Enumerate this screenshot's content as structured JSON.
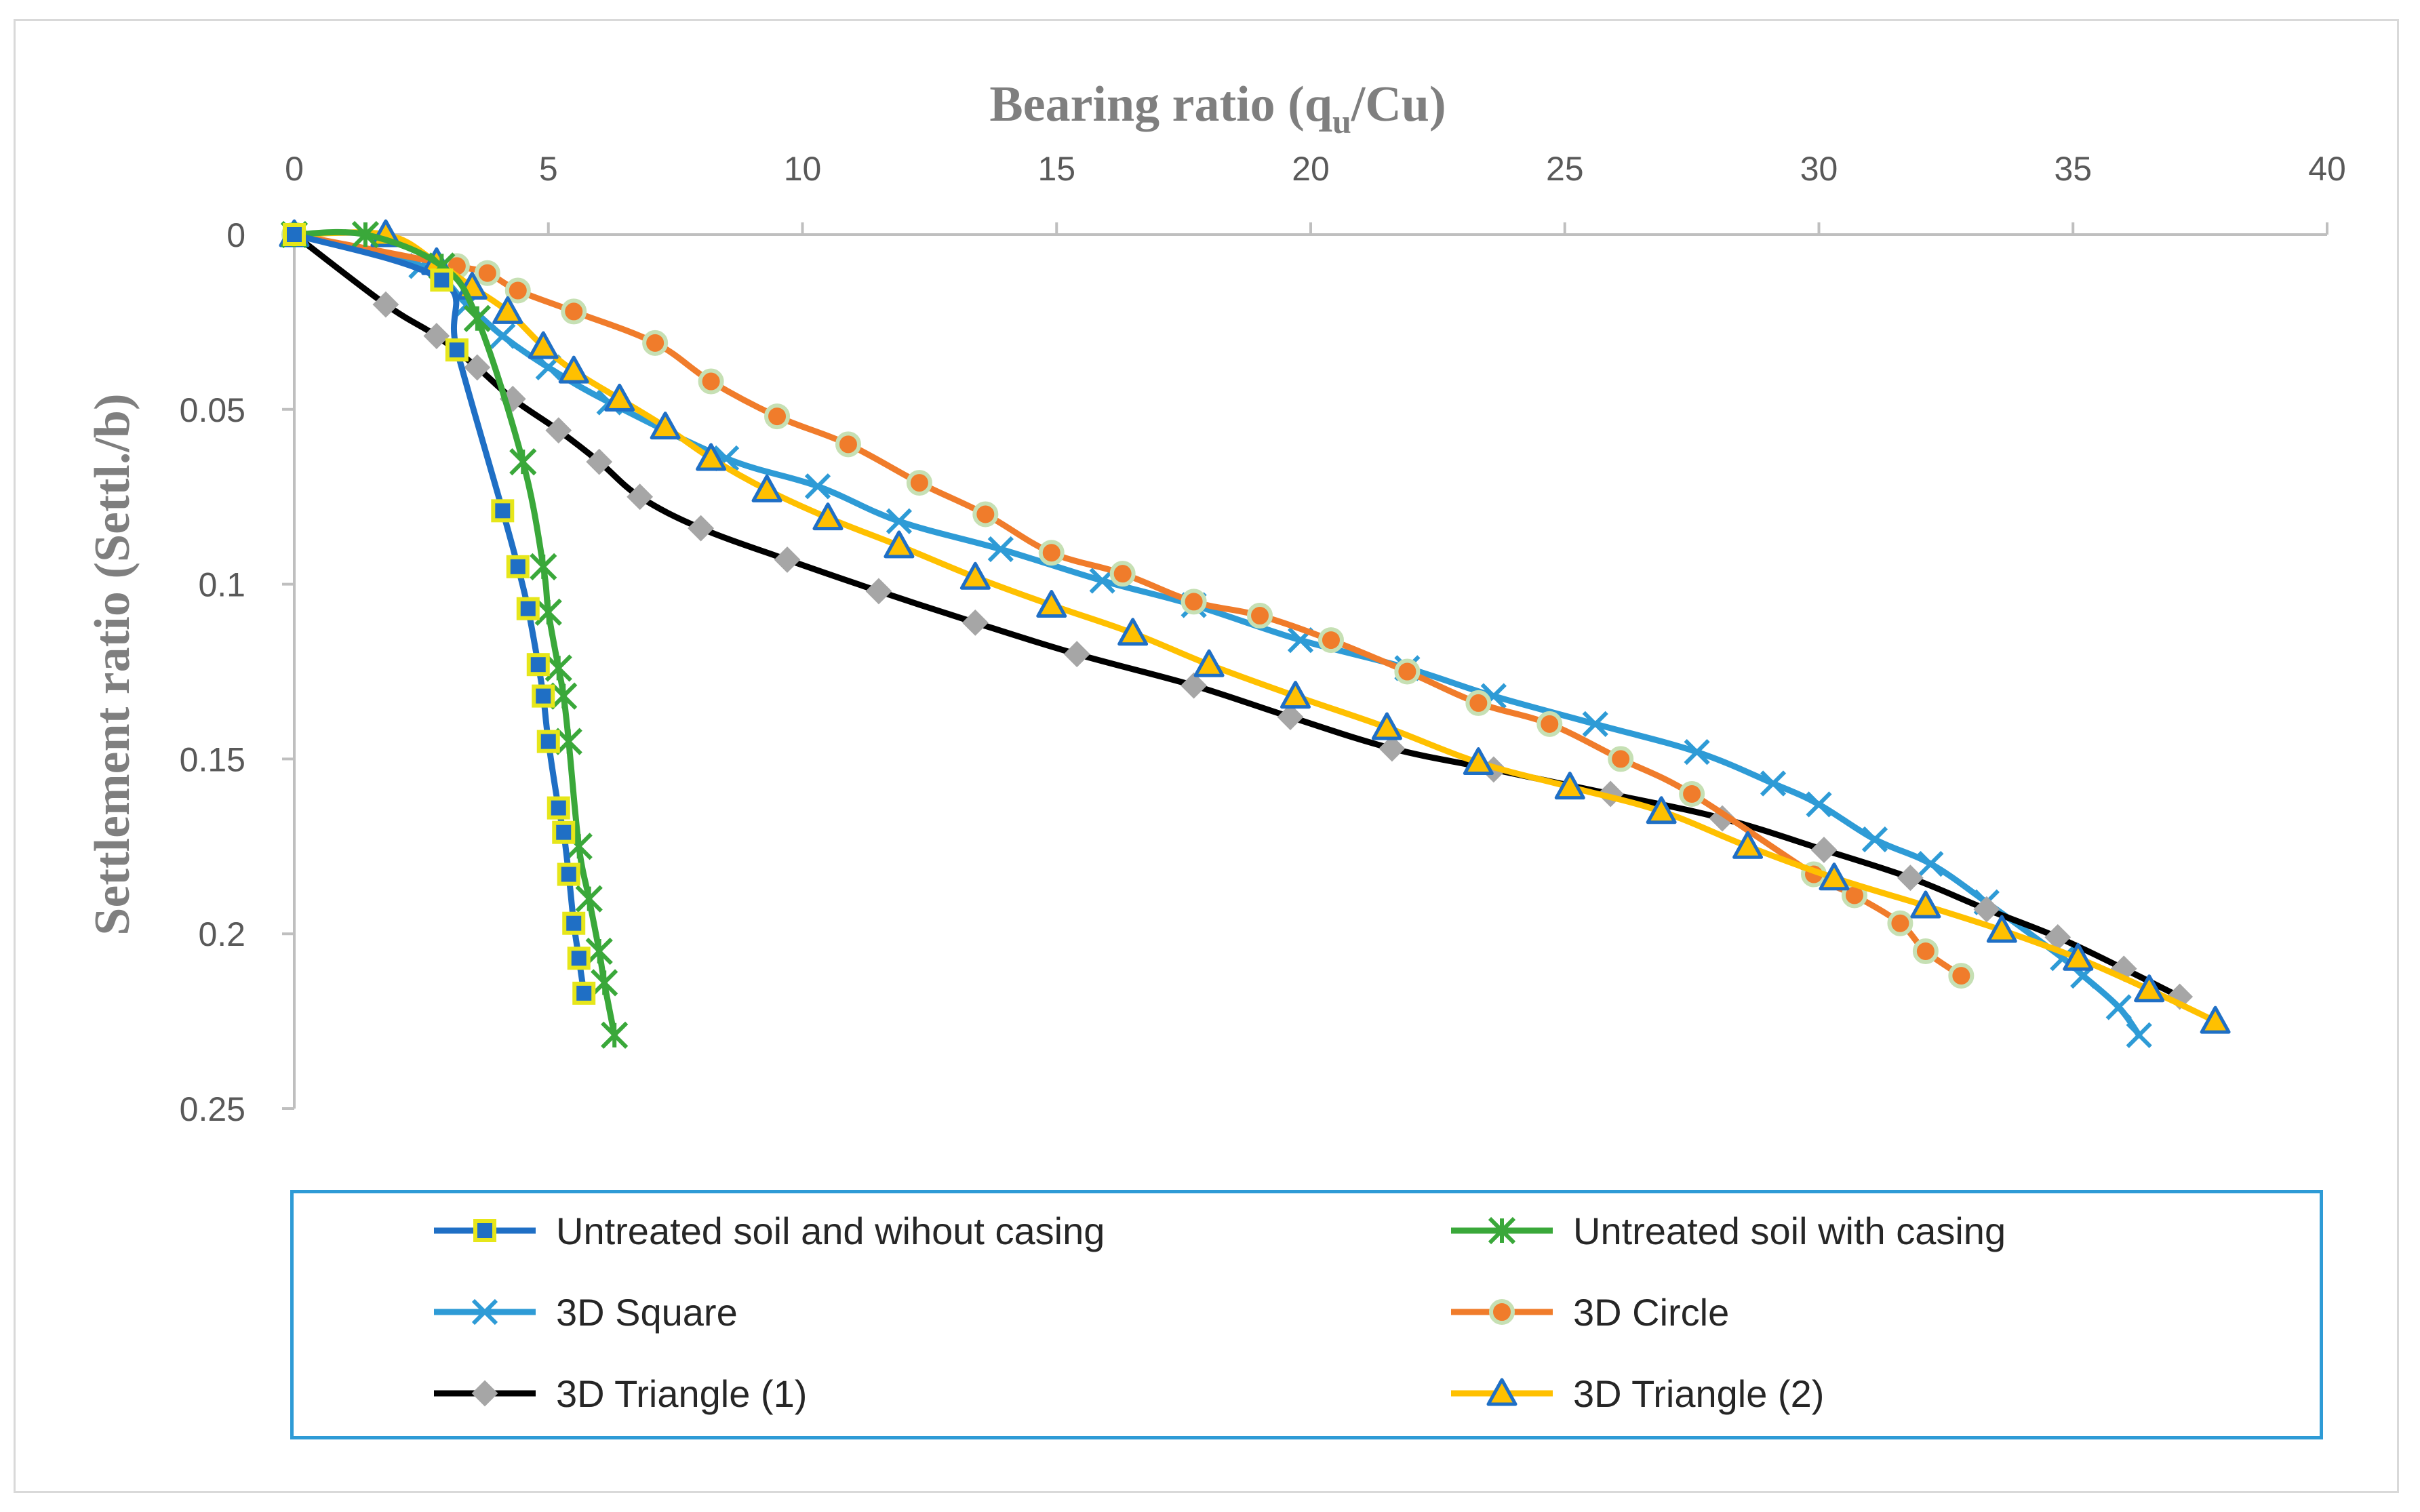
{
  "chart_data": {
    "type": "line",
    "title": "",
    "xlabel": "Bearing ratio (qu/Cu)",
    "xlabel_main": "Bearing ratio (q",
    "xlabel_sub": "u",
    "xlabel_tail": "/Cu)",
    "ylabel": "Settlement ratio (Settl./b)",
    "xlim": [
      0,
      40
    ],
    "ylim": [
      0,
      0.25
    ],
    "x_axis_position": "top",
    "y_axis_inverted": true,
    "xticks": [
      "0",
      "5",
      "10",
      "15",
      "20",
      "25",
      "30",
      "35",
      "40"
    ],
    "yticks": [
      "0",
      "0.05",
      "0.1",
      "0.15",
      "0.2",
      "0.25"
    ],
    "grid": false,
    "legend_position": "bottom",
    "series": [
      {
        "name": "Untreated soil and wihout casing",
        "color": "#1f6fc5",
        "marker": "square",
        "marker_fill": "#1f6fc5",
        "marker_edge": "#e6e61a",
        "points": [
          [
            0,
            0
          ],
          [
            2.9,
            0.013
          ],
          [
            3.2,
            0.033
          ],
          [
            4.1,
            0.079
          ],
          [
            4.4,
            0.095
          ],
          [
            4.6,
            0.107
          ],
          [
            4.8,
            0.123
          ],
          [
            4.9,
            0.132
          ],
          [
            5.0,
            0.145
          ],
          [
            5.2,
            0.164
          ],
          [
            5.3,
            0.171
          ],
          [
            5.4,
            0.183
          ],
          [
            5.5,
            0.197
          ],
          [
            5.6,
            0.207
          ],
          [
            5.7,
            0.217
          ]
        ]
      },
      {
        "name": "Untreated soil with casing",
        "color": "#3aa83a",
        "marker": "star",
        "marker_fill": "#3aa83a",
        "marker_edge": "#3aa83a",
        "points": [
          [
            0,
            0
          ],
          [
            1.4,
            0
          ],
          [
            2.9,
            0.009
          ],
          [
            3.6,
            0.024
          ],
          [
            4.5,
            0.065
          ],
          [
            4.9,
            0.095
          ],
          [
            5.0,
            0.108
          ],
          [
            5.2,
            0.124
          ],
          [
            5.3,
            0.132
          ],
          [
            5.4,
            0.145
          ],
          [
            5.6,
            0.175
          ],
          [
            5.8,
            0.19
          ],
          [
            6.0,
            0.205
          ],
          [
            6.1,
            0.214
          ],
          [
            6.3,
            0.229
          ]
        ]
      },
      {
        "name": "3D Square",
        "color": "#2e9bd6",
        "marker": "x",
        "marker_fill": "#2e9bd6",
        "marker_edge": "#2e9bd6",
        "points": [
          [
            0,
            0
          ],
          [
            2.5,
            0.009
          ],
          [
            3.4,
            0.02
          ],
          [
            4.1,
            0.029
          ],
          [
            5.0,
            0.038
          ],
          [
            6.2,
            0.048
          ],
          [
            8.5,
            0.064
          ],
          [
            10.3,
            0.072
          ],
          [
            11.9,
            0.082
          ],
          [
            13.9,
            0.09
          ],
          [
            15.9,
            0.099
          ],
          [
            17.7,
            0.106
          ],
          [
            19.8,
            0.116
          ],
          [
            21.9,
            0.124
          ],
          [
            23.6,
            0.132
          ],
          [
            25.6,
            0.14
          ],
          [
            27.6,
            0.148
          ],
          [
            29.1,
            0.157
          ],
          [
            30.0,
            0.163
          ],
          [
            31.1,
            0.173
          ],
          [
            32.2,
            0.18
          ],
          [
            33.3,
            0.191
          ],
          [
            34.8,
            0.207
          ],
          [
            35.2,
            0.212
          ],
          [
            35.9,
            0.221
          ],
          [
            36.3,
            0.229
          ]
        ]
      },
      {
        "name": "3D Circle",
        "color": "#f07c2b",
        "marker": "circle",
        "marker_fill": "#f07c2b",
        "marker_edge": "#c6e0b4",
        "points": [
          [
            0,
            0
          ],
          [
            3.2,
            0.009
          ],
          [
            3.8,
            0.011
          ],
          [
            4.4,
            0.016
          ],
          [
            5.5,
            0.022
          ],
          [
            7.1,
            0.031
          ],
          [
            8.2,
            0.042
          ],
          [
            9.5,
            0.052
          ],
          [
            10.9,
            0.06
          ],
          [
            12.3,
            0.071
          ],
          [
            13.6,
            0.08
          ],
          [
            14.9,
            0.091
          ],
          [
            16.3,
            0.097
          ],
          [
            17.7,
            0.105
          ],
          [
            19.0,
            0.109
          ],
          [
            20.4,
            0.116
          ],
          [
            21.9,
            0.125
          ],
          [
            23.3,
            0.134
          ],
          [
            24.7,
            0.14
          ],
          [
            26.1,
            0.15
          ],
          [
            27.5,
            0.16
          ],
          [
            29.9,
            0.183
          ],
          [
            30.7,
            0.189
          ],
          [
            31.6,
            0.197
          ],
          [
            32.1,
            0.205
          ],
          [
            32.8,
            0.212
          ]
        ]
      },
      {
        "name": "3D Triangle (1)",
        "color": "#000000",
        "marker": "diamond",
        "marker_fill": "#a6a6a6",
        "marker_edge": "#a6a6a6",
        "points": [
          [
            0,
            0
          ],
          [
            1.8,
            0.02
          ],
          [
            2.8,
            0.029
          ],
          [
            3.6,
            0.038
          ],
          [
            4.3,
            0.047
          ],
          [
            5.2,
            0.056
          ],
          [
            6.0,
            0.065
          ],
          [
            6.8,
            0.075
          ],
          [
            8.0,
            0.084
          ],
          [
            9.7,
            0.093
          ],
          [
            11.5,
            0.102
          ],
          [
            13.4,
            0.111
          ],
          [
            15.4,
            0.12
          ],
          [
            17.7,
            0.129
          ],
          [
            19.6,
            0.138
          ],
          [
            21.6,
            0.147
          ],
          [
            23.6,
            0.153
          ],
          [
            25.9,
            0.16
          ],
          [
            28.1,
            0.167
          ],
          [
            30.1,
            0.176
          ],
          [
            31.8,
            0.184
          ],
          [
            33.3,
            0.193
          ],
          [
            34.7,
            0.201
          ],
          [
            36.0,
            0.21
          ],
          [
            37.1,
            0.218
          ]
        ]
      },
      {
        "name": "3D Triangle (2)",
        "color": "#ffc000",
        "marker": "triangle",
        "marker_fill": "#ffc000",
        "marker_edge": "#1f6fc5",
        "points": [
          [
            0,
            0
          ],
          [
            1.8,
            0
          ],
          [
            2.8,
            0.008
          ],
          [
            3.5,
            0.015
          ],
          [
            4.2,
            0.022
          ],
          [
            4.9,
            0.032
          ],
          [
            5.5,
            0.039
          ],
          [
            6.4,
            0.047
          ],
          [
            7.3,
            0.055
          ],
          [
            8.2,
            0.064
          ],
          [
            9.3,
            0.073
          ],
          [
            10.5,
            0.081
          ],
          [
            11.9,
            0.089
          ],
          [
            13.4,
            0.098
          ],
          [
            14.9,
            0.106
          ],
          [
            16.5,
            0.114
          ],
          [
            18.0,
            0.123
          ],
          [
            19.7,
            0.132
          ],
          [
            21.5,
            0.141
          ],
          [
            23.3,
            0.151
          ],
          [
            25.1,
            0.158
          ],
          [
            26.9,
            0.165
          ],
          [
            28.6,
            0.175
          ],
          [
            30.3,
            0.184
          ],
          [
            32.1,
            0.192
          ],
          [
            33.6,
            0.199
          ],
          [
            35.1,
            0.207
          ],
          [
            36.5,
            0.216
          ],
          [
            37.8,
            0.225
          ]
        ]
      }
    ]
  }
}
